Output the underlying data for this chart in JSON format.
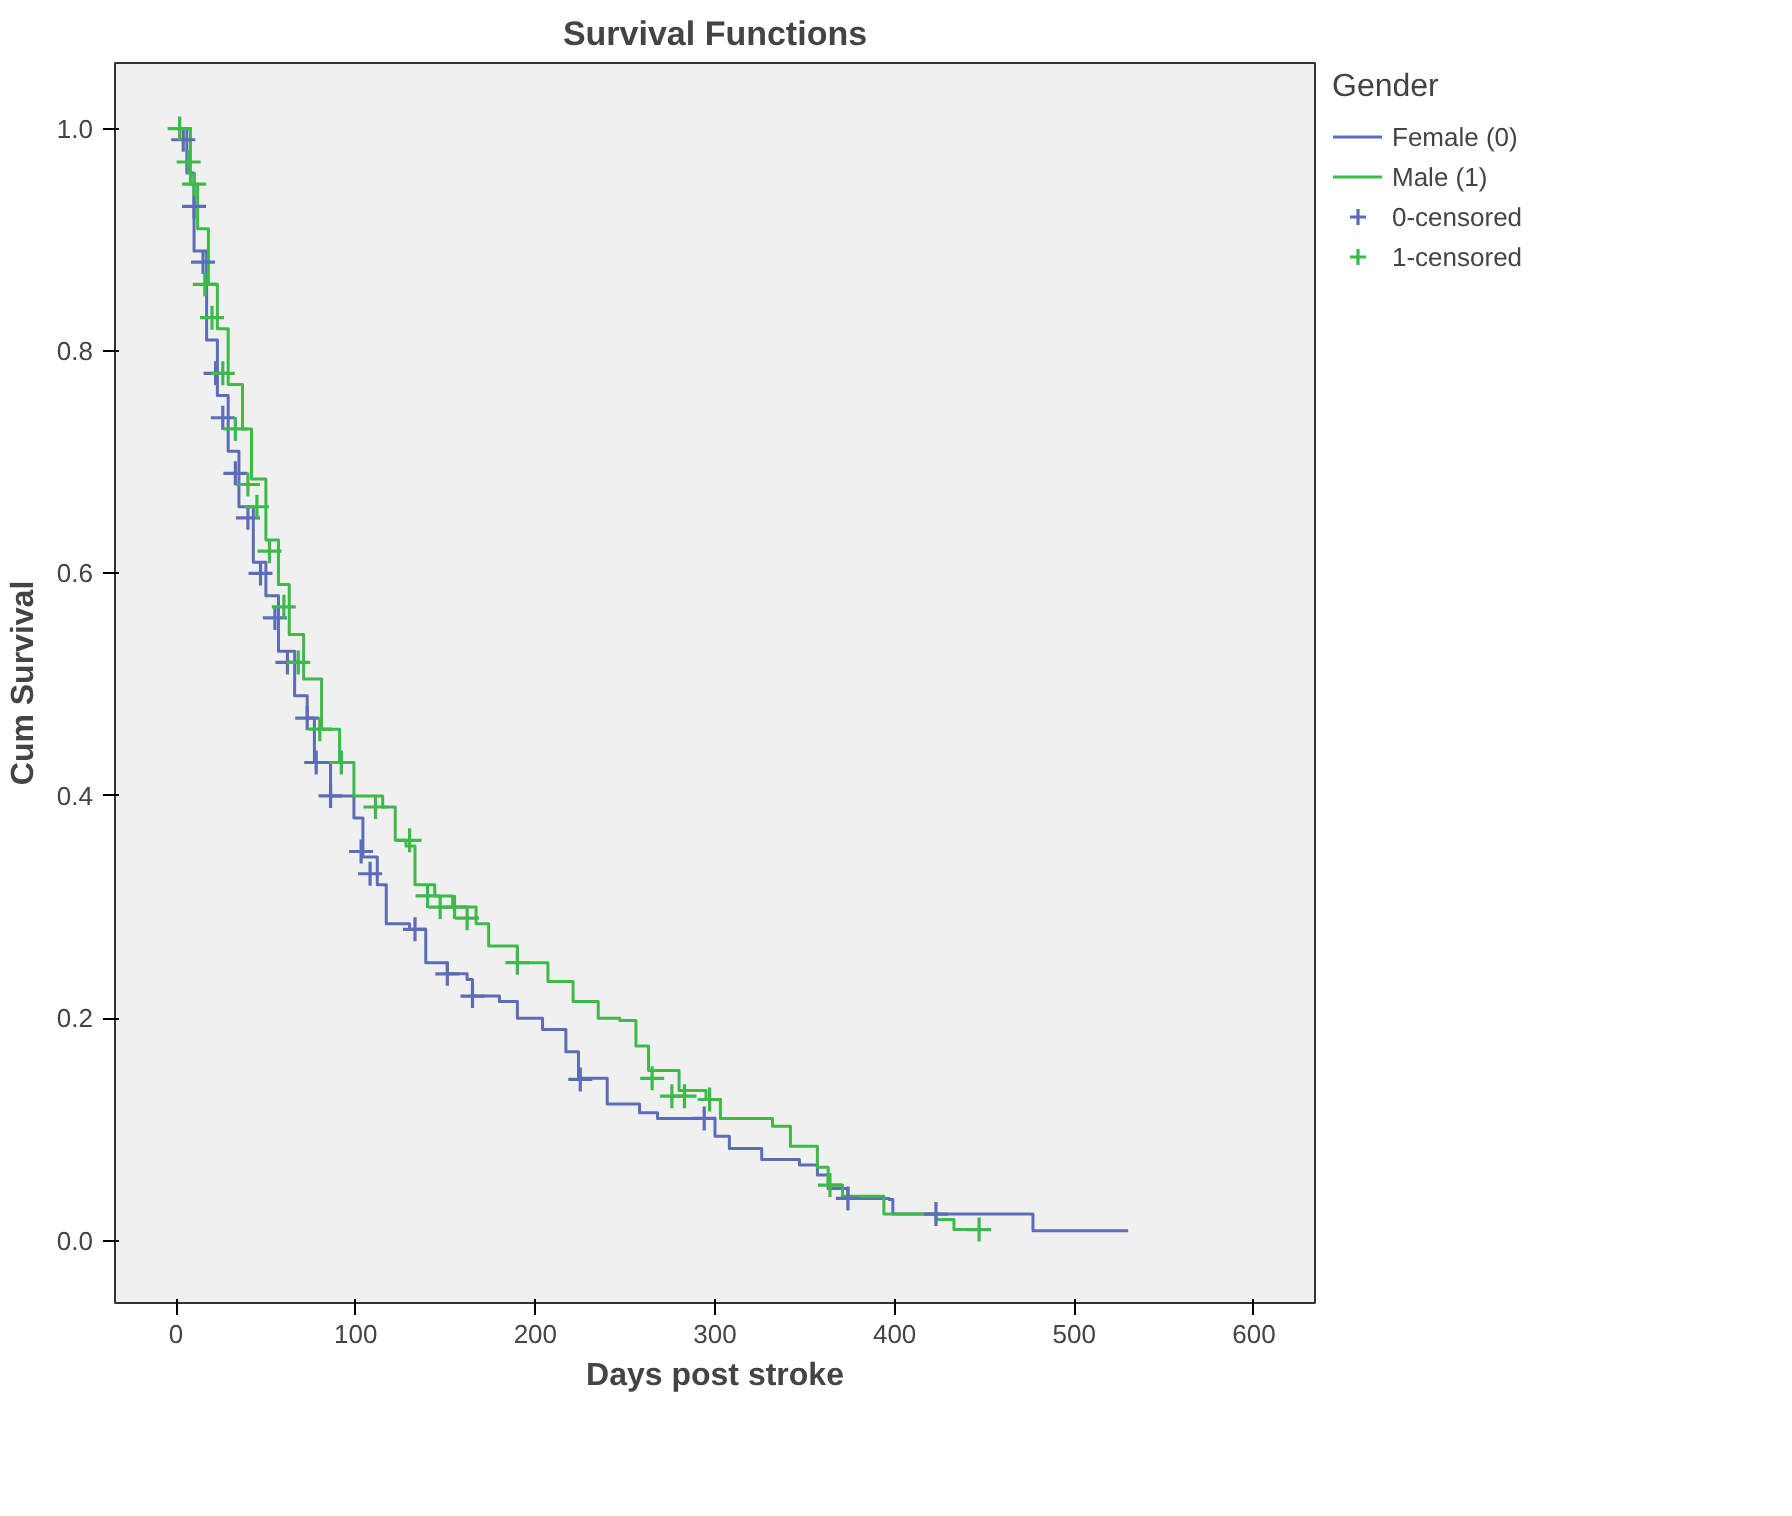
{
  "chart_data": {
    "type": "step",
    "title": "Survival Functions",
    "xlabel": "Days post stroke",
    "ylabel": "Cum Survival",
    "legend_title": "Gender",
    "legend": "right",
    "grid": false,
    "line_style": "solid",
    "xlim": [
      -34,
      634
    ],
    "ylim": [
      -0.056,
      1.059
    ],
    "xticks": [
      0,
      100,
      200,
      300,
      400,
      500,
      600
    ],
    "yticks": [
      {
        "value": 0,
        "label": "0.0"
      },
      {
        "value": 0.2,
        "label": "0.2"
      },
      {
        "value": 0.4,
        "label": "0.4"
      },
      {
        "value": 0.6,
        "label": "0.6"
      },
      {
        "value": 0.8,
        "label": "0.8"
      },
      {
        "value": 1,
        "label": "1.0"
      }
    ],
    "series": [
      {
        "name": "Female (0)",
        "color": "#5b6cb8",
        "x": [
          0,
          6,
          10,
          17,
          23,
          29,
          35,
          43,
          50,
          57,
          66,
          73,
          77,
          86,
          99,
          104,
          112,
          117,
          130,
          139,
          151,
          162,
          165,
          180,
          190,
          204,
          217,
          224,
          240,
          258,
          268,
          294,
          300,
          308,
          326,
          347,
          357,
          363,
          374,
          397,
          399,
          473,
          477,
          530
        ],
        "values": [
          1.0,
          0.96,
          0.89,
          0.81,
          0.76,
          0.71,
          0.66,
          0.61,
          0.58,
          0.53,
          0.49,
          0.47,
          0.43,
          0.4,
          0.38,
          0.345,
          0.32,
          0.285,
          0.28,
          0.25,
          0.24,
          0.235,
          0.22,
          0.215,
          0.2,
          0.19,
          0.17,
          0.146,
          0.123,
          0.115,
          0.11,
          0.11,
          0.094,
          0.083,
          0.073,
          0.068,
          0.059,
          0.047,
          0.038,
          0.037,
          0.024,
          0.024,
          0.009,
          0.009
        ]
      },
      {
        "name": "Male (1)",
        "color": "#3dba4a",
        "x": [
          0,
          8,
          12,
          18,
          23,
          29,
          37,
          42,
          50,
          57,
          63,
          71,
          81,
          91,
          99,
          115,
          122,
          128,
          133,
          144,
          154,
          167,
          174,
          190,
          207,
          221,
          235,
          247,
          256,
          263,
          280,
          295,
          303,
          332,
          342,
          357,
          363,
          371,
          388,
          394,
          423,
          433,
          449
        ],
        "values": [
          1.0,
          0.95,
          0.91,
          0.86,
          0.82,
          0.77,
          0.73,
          0.685,
          0.63,
          0.59,
          0.545,
          0.505,
          0.46,
          0.43,
          0.4,
          0.39,
          0.36,
          0.355,
          0.32,
          0.31,
          0.3,
          0.285,
          0.265,
          0.25,
          0.233,
          0.215,
          0.2,
          0.198,
          0.175,
          0.153,
          0.135,
          0.127,
          0.11,
          0.103,
          0.085,
          0.066,
          0.05,
          0.04,
          0.04,
          0.024,
          0.019,
          0.01,
          0.01
        ]
      },
      {
        "name": "0-censored",
        "type": "scatter",
        "marker": "cross",
        "color": "#5b6cb8",
        "x": [
          4,
          10,
          15,
          22,
          26,
          33,
          40,
          47,
          55,
          62,
          73,
          78,
          86,
          103,
          108,
          133,
          151,
          165,
          225,
          294,
          374,
          423
        ],
        "values": [
          0.99,
          0.93,
          0.88,
          0.78,
          0.74,
          0.69,
          0.65,
          0.6,
          0.56,
          0.52,
          0.47,
          0.43,
          0.4,
          0.35,
          0.33,
          0.28,
          0.24,
          0.22,
          0.145,
          0.11,
          0.038,
          0.024
        ]
      },
      {
        "name": "1-censored",
        "type": "scatter",
        "marker": "cross",
        "color": "#3dba4a",
        "x": [
          2,
          7,
          10,
          16,
          20,
          26,
          33,
          40,
          45,
          52,
          60,
          68,
          80,
          92,
          111,
          130,
          140,
          147,
          155,
          162,
          190,
          265,
          276,
          283,
          297,
          364,
          447
        ],
        "values": [
          1.0,
          0.97,
          0.95,
          0.86,
          0.83,
          0.78,
          0.73,
          0.68,
          0.66,
          0.62,
          0.57,
          0.52,
          0.46,
          0.43,
          0.39,
          0.36,
          0.31,
          0.3,
          0.3,
          0.29,
          0.25,
          0.146,
          0.13,
          0.13,
          0.127,
          0.05,
          0.01
        ]
      }
    ]
  }
}
